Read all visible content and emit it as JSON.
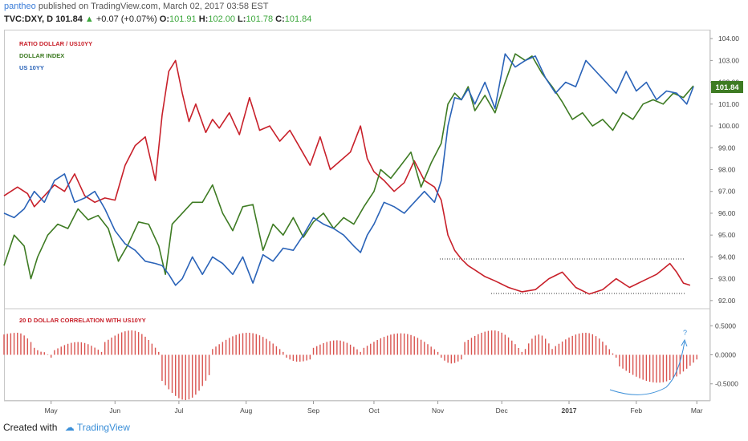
{
  "header": {
    "author": "pantheo",
    "published_text": "published on TradingView.com, March 02, 2017 03:58 EST",
    "symbol": "TVC:DXY, D",
    "last": "101.84",
    "change": "+0.07 (+0.07%)",
    "o_label": "O:",
    "o": "101.91",
    "h_label": "H:",
    "h": "102.00",
    "l_label": "L:",
    "l": "101.78",
    "c_label": "C:",
    "c": "101.84"
  },
  "footer": {
    "created_with": "Created with",
    "brand": "TradingView"
  },
  "colors": {
    "ratio": "#c8202a",
    "dollar": "#3e7b23",
    "us10": "#2a63b8",
    "corr": "#d9534f",
    "badge": "#3e7b23",
    "annot": "#3b8fd8"
  },
  "chart_data": [
    {
      "type": "line",
      "title": "",
      "legend": [
        "RATIO DOLLAR / US10YY",
        "DOLLAR INDEX",
        "US 10YY"
      ],
      "legend_position": "top-left",
      "y_ticks": [
        "104.00",
        "103.00",
        "102.00",
        "101.00",
        "100.00",
        "99.00",
        "98.00",
        "97.00",
        "96.00",
        "95.00",
        "94.00",
        "93.00",
        "92.00"
      ],
      "ylim": [
        91.7,
        104.3
      ],
      "current_value_label": "101.84",
      "x_ticks": [
        "May",
        "Jun",
        "Jul",
        "Aug",
        "Sep",
        "Oct",
        "Nov",
        "Dec",
        "2017",
        "Feb",
        "Mar"
      ],
      "grid": false,
      "x_index_range": [
        0,
        210
      ],
      "x_tick_positions": [
        14,
        33,
        52,
        72,
        92,
        110,
        129,
        148,
        168,
        188,
        206
      ],
      "series": [
        {
          "name": "RATIO DOLLAR / US10YY",
          "x": [
            0,
            4,
            7,
            9,
            12,
            15,
            18,
            21,
            24,
            27,
            30,
            33,
            36,
            39,
            42,
            45,
            47,
            49,
            51,
            53,
            55,
            57,
            60,
            62,
            64,
            67,
            70,
            73,
            76,
            79,
            82,
            85,
            88,
            91,
            94,
            97,
            100,
            103,
            106,
            108,
            110,
            113,
            116,
            119,
            122,
            125,
            128,
            130,
            132,
            134,
            136,
            138,
            140,
            143,
            146,
            150,
            154,
            158,
            162,
            166,
            170,
            174,
            178,
            182,
            186,
            190,
            194,
            198,
            200,
            202,
            204
          ],
          "y": [
            96.8,
            97.2,
            96.9,
            96.3,
            96.8,
            97.3,
            97.0,
            97.8,
            96.8,
            96.5,
            96.7,
            96.6,
            98.2,
            99.1,
            99.5,
            97.5,
            100.5,
            102.5,
            103.0,
            101.5,
            100.2,
            101.0,
            99.7,
            100.3,
            99.9,
            100.6,
            99.6,
            101.3,
            99.8,
            100.0,
            99.3,
            99.8,
            99.0,
            98.2,
            99.5,
            98.0,
            98.4,
            98.8,
            100.0,
            98.5,
            97.9,
            97.5,
            97.0,
            97.4,
            98.4,
            97.5,
            97.2,
            96.6,
            95.0,
            94.3,
            93.9,
            93.6,
            93.4,
            93.1,
            92.9,
            92.6,
            92.4,
            92.5,
            93.0,
            93.3,
            92.6,
            92.3,
            92.5,
            93.0,
            92.6,
            92.9,
            93.2,
            93.7,
            93.3,
            92.8,
            92.7
          ]
        },
        {
          "name": "DOLLAR INDEX",
          "x": [
            0,
            3,
            6,
            8,
            10,
            13,
            16,
            19,
            22,
            25,
            28,
            31,
            34,
            37,
            40,
            43,
            46,
            48,
            50,
            53,
            56,
            59,
            62,
            65,
            68,
            71,
            74,
            77,
            80,
            83,
            86,
            89,
            92,
            95,
            98,
            101,
            104,
            107,
            110,
            112,
            115,
            118,
            121,
            124,
            127,
            130,
            132,
            134,
            136,
            138,
            140,
            143,
            146,
            149,
            152,
            155,
            157,
            160,
            163,
            166,
            169,
            172,
            175,
            178,
            181,
            184,
            187,
            190,
            193,
            196,
            199,
            202,
            205
          ],
          "y": [
            93.6,
            95.0,
            94.5,
            93.0,
            94.0,
            95.0,
            95.5,
            95.3,
            96.2,
            95.7,
            95.9,
            95.3,
            93.8,
            94.6,
            95.6,
            95.5,
            94.5,
            93.2,
            95.5,
            96.0,
            96.5,
            96.5,
            97.3,
            96.0,
            95.2,
            96.3,
            96.4,
            94.3,
            95.5,
            95.0,
            95.8,
            94.9,
            95.6,
            96.0,
            95.3,
            95.8,
            95.5,
            96.3,
            97.0,
            98.0,
            97.6,
            98.2,
            98.8,
            97.2,
            98.3,
            99.2,
            101.0,
            101.5,
            101.2,
            101.8,
            100.7,
            101.4,
            100.6,
            102.0,
            103.3,
            103.0,
            103.2,
            102.4,
            101.8,
            101.1,
            100.3,
            100.6,
            100.0,
            100.3,
            99.8,
            100.6,
            100.3,
            101.0,
            101.2,
            101.0,
            101.5,
            101.3,
            101.84
          ]
        },
        {
          "name": "US 10YY",
          "x": [
            0,
            3,
            6,
            9,
            12,
            15,
            18,
            21,
            24,
            27,
            30,
            33,
            36,
            39,
            42,
            45,
            47,
            49,
            51,
            53,
            56,
            59,
            62,
            65,
            68,
            71,
            74,
            77,
            80,
            83,
            86,
            89,
            92,
            95,
            98,
            101,
            104,
            106,
            108,
            110,
            113,
            116,
            119,
            122,
            125,
            128,
            130,
            132,
            134,
            136,
            138,
            140,
            143,
            146,
            149,
            152,
            155,
            158,
            161,
            164,
            167,
            170,
            173,
            176,
            179,
            182,
            185,
            188,
            191,
            194,
            197,
            200,
            203,
            205
          ],
          "y": [
            96.0,
            95.8,
            96.2,
            97.0,
            96.5,
            97.5,
            97.8,
            96.5,
            96.7,
            97.0,
            96.2,
            95.2,
            94.6,
            94.3,
            93.8,
            93.7,
            93.6,
            93.2,
            92.7,
            93.0,
            94.0,
            93.2,
            94.0,
            93.7,
            93.2,
            94.0,
            92.8,
            94.1,
            93.8,
            94.4,
            94.3,
            95.0,
            95.8,
            95.5,
            95.3,
            95.0,
            94.5,
            94.2,
            95.0,
            95.5,
            96.5,
            96.3,
            96.0,
            96.5,
            97.0,
            96.5,
            97.5,
            100.0,
            101.3,
            101.2,
            101.7,
            101.0,
            102.0,
            100.8,
            103.3,
            102.7,
            103.0,
            103.2,
            102.2,
            101.5,
            102.0,
            101.8,
            103.0,
            102.5,
            102.0,
            101.5,
            102.5,
            101.6,
            102.0,
            101.2,
            101.6,
            101.5,
            101.0,
            101.8
          ]
        }
      ]
    },
    {
      "type": "bar",
      "title": "20 D DOLLAR CORRELATION WITH US10YY",
      "y_ticks": [
        "0.5000",
        "0.0000",
        "-0.5000"
      ],
      "ylim": [
        -0.78,
        0.78
      ],
      "annotation": "?",
      "x_index_range": [
        0,
        210
      ],
      "bar_segments": [
        {
          "from": 0,
          "to": 8,
          "start": 0.35,
          "peak": 0.38,
          "end": 0.22
        },
        {
          "from": 9,
          "to": 14,
          "start": 0.12,
          "peak": 0.05,
          "end": -0.05
        },
        {
          "from": 15,
          "to": 29,
          "start": 0.08,
          "peak": 0.22,
          "end": 0.05
        },
        {
          "from": 30,
          "to": 46,
          "start": 0.22,
          "peak": 0.42,
          "end": 0.05
        },
        {
          "from": 47,
          "to": 61,
          "start": -0.45,
          "peak": -0.78,
          "end": -0.35
        },
        {
          "from": 62,
          "to": 83,
          "start": 0.1,
          "peak": 0.38,
          "end": 0.05
        },
        {
          "from": 84,
          "to": 91,
          "start": -0.05,
          "peak": -0.12,
          "end": -0.08
        },
        {
          "from": 92,
          "to": 106,
          "start": 0.12,
          "peak": 0.25,
          "end": 0.05
        },
        {
          "from": 107,
          "to": 129,
          "start": 0.12,
          "peak": 0.37,
          "end": 0.05
        },
        {
          "from": 130,
          "to": 136,
          "start": -0.05,
          "peak": -0.15,
          "end": -0.08
        },
        {
          "from": 137,
          "to": 154,
          "start": 0.22,
          "peak": 0.42,
          "end": 0.05
        },
        {
          "from": 155,
          "to": 163,
          "start": 0.1,
          "peak": 0.35,
          "end": 0.1
        },
        {
          "from": 164,
          "to": 182,
          "start": 0.15,
          "peak": 0.38,
          "end": -0.05
        },
        {
          "from": 183,
          "to": 206,
          "start": -0.2,
          "peak": -0.48,
          "end": -0.08
        }
      ]
    }
  ]
}
